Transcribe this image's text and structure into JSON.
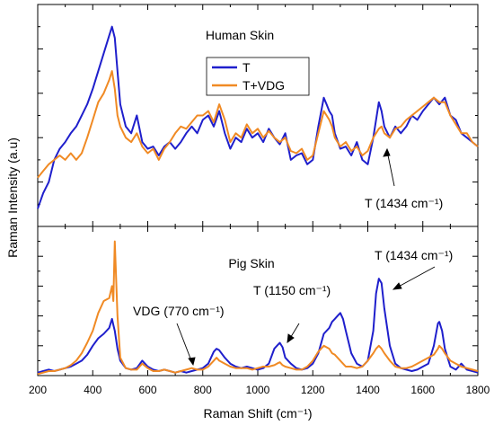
{
  "chart_data": [
    {
      "type": "line",
      "title": "Human Skin",
      "xlabel": "Raman Shift (cm⁻¹)",
      "ylabel": "Raman Intensity (a.u)",
      "xlim": [
        200,
        1800
      ],
      "ylim": [
        0,
        1
      ],
      "y_tick_labels": "none",
      "legend": {
        "position": "top-center",
        "entries": [
          "T",
          "T+VDG"
        ]
      },
      "colors": {
        "T": "#1f1fcc",
        "T+VDG": "#f08a24"
      },
      "series": [
        {
          "name": "T",
          "x": [
            200,
            220,
            240,
            260,
            280,
            300,
            320,
            340,
            360,
            380,
            400,
            420,
            440,
            460,
            470,
            480,
            490,
            500,
            520,
            540,
            560,
            580,
            600,
            620,
            640,
            660,
            680,
            700,
            720,
            740,
            760,
            780,
            800,
            820,
            840,
            860,
            880,
            900,
            920,
            940,
            960,
            980,
            1000,
            1020,
            1040,
            1060,
            1080,
            1100,
            1120,
            1140,
            1160,
            1180,
            1200,
            1220,
            1240,
            1250,
            1260,
            1270,
            1280,
            1300,
            1320,
            1340,
            1360,
            1380,
            1400,
            1420,
            1440,
            1450,
            1460,
            1480,
            1500,
            1520,
            1540,
            1560,
            1580,
            1600,
            1620,
            1640,
            1660,
            1680,
            1700,
            1720,
            1740,
            1760,
            1780,
            1800
          ],
          "y": [
            0.08,
            0.15,
            0.2,
            0.3,
            0.35,
            0.38,
            0.42,
            0.45,
            0.5,
            0.55,
            0.62,
            0.7,
            0.78,
            0.86,
            0.9,
            0.85,
            0.7,
            0.55,
            0.45,
            0.42,
            0.5,
            0.38,
            0.35,
            0.36,
            0.32,
            0.36,
            0.38,
            0.35,
            0.38,
            0.42,
            0.45,
            0.42,
            0.48,
            0.5,
            0.45,
            0.52,
            0.42,
            0.35,
            0.4,
            0.38,
            0.44,
            0.4,
            0.42,
            0.38,
            0.44,
            0.4,
            0.37,
            0.42,
            0.3,
            0.32,
            0.33,
            0.28,
            0.3,
            0.45,
            0.58,
            0.55,
            0.52,
            0.5,
            0.42,
            0.35,
            0.36,
            0.32,
            0.38,
            0.3,
            0.28,
            0.4,
            0.56,
            0.52,
            0.45,
            0.4,
            0.45,
            0.42,
            0.45,
            0.5,
            0.48,
            0.52,
            0.55,
            0.58,
            0.55,
            0.58,
            0.5,
            0.48,
            0.42,
            0.4,
            0.38,
            0.36
          ]
        },
        {
          "name": "T+VDG",
          "x": [
            200,
            220,
            240,
            260,
            280,
            300,
            320,
            340,
            360,
            380,
            400,
            420,
            440,
            460,
            470,
            480,
            490,
            500,
            520,
            540,
            560,
            580,
            600,
            620,
            640,
            660,
            680,
            700,
            720,
            740,
            760,
            780,
            800,
            820,
            840,
            860,
            880,
            900,
            920,
            940,
            960,
            980,
            1000,
            1020,
            1040,
            1060,
            1080,
            1100,
            1120,
            1140,
            1160,
            1180,
            1200,
            1220,
            1240,
            1250,
            1260,
            1270,
            1280,
            1300,
            1320,
            1340,
            1360,
            1380,
            1400,
            1420,
            1440,
            1450,
            1460,
            1480,
            1500,
            1520,
            1540,
            1560,
            1580,
            1600,
            1620,
            1640,
            1660,
            1680,
            1700,
            1720,
            1740,
            1760,
            1780,
            1800
          ],
          "y": [
            0.22,
            0.25,
            0.28,
            0.3,
            0.32,
            0.3,
            0.33,
            0.3,
            0.33,
            0.4,
            0.48,
            0.56,
            0.6,
            0.66,
            0.7,
            0.62,
            0.5,
            0.45,
            0.4,
            0.38,
            0.42,
            0.36,
            0.33,
            0.35,
            0.3,
            0.35,
            0.38,
            0.42,
            0.45,
            0.44,
            0.47,
            0.5,
            0.5,
            0.52,
            0.47,
            0.55,
            0.48,
            0.38,
            0.42,
            0.4,
            0.46,
            0.42,
            0.44,
            0.4,
            0.43,
            0.4,
            0.38,
            0.4,
            0.34,
            0.33,
            0.35,
            0.3,
            0.32,
            0.42,
            0.52,
            0.5,
            0.48,
            0.45,
            0.4,
            0.36,
            0.38,
            0.34,
            0.36,
            0.32,
            0.34,
            0.4,
            0.44,
            0.45,
            0.42,
            0.4,
            0.44,
            0.45,
            0.48,
            0.5,
            0.52,
            0.54,
            0.56,
            0.58,
            0.56,
            0.56,
            0.5,
            0.46,
            0.42,
            0.42,
            0.38,
            0.36
          ]
        }
      ]
    },
    {
      "type": "line",
      "title": "Pig Skin",
      "xlabel": "Raman Shift (cm⁻¹)",
      "ylabel": "Raman Intensity (a.u)",
      "xlim": [
        200,
        1800
      ],
      "ylim": [
        0,
        1
      ],
      "y_tick_labels": "none",
      "x_ticks": [
        200,
        400,
        600,
        800,
        1000,
        1200,
        1400,
        1600,
        1800
      ],
      "annotations": [
        {
          "text": "VDG (770 cm⁻¹)",
          "x": 770
        },
        {
          "text": "T (1150 cm⁻¹)",
          "x": 1150
        },
        {
          "text": "T (1434 cm⁻¹)",
          "x": 1434
        }
      ],
      "series": [
        {
          "name": "T",
          "x": [
            200,
            220,
            240,
            260,
            280,
            300,
            320,
            340,
            360,
            380,
            400,
            420,
            440,
            460,
            470,
            475,
            480,
            490,
            500,
            520,
            540,
            560,
            580,
            600,
            620,
            640,
            660,
            680,
            700,
            720,
            740,
            760,
            780,
            800,
            820,
            840,
            850,
            860,
            880,
            900,
            920,
            940,
            960,
            980,
            1000,
            1020,
            1040,
            1060,
            1070,
            1080,
            1090,
            1100,
            1120,
            1140,
            1160,
            1180,
            1200,
            1220,
            1240,
            1260,
            1270,
            1280,
            1290,
            1300,
            1310,
            1320,
            1340,
            1360,
            1380,
            1400,
            1420,
            1430,
            1440,
            1450,
            1460,
            1480,
            1500,
            1520,
            1540,
            1560,
            1580,
            1600,
            1620,
            1640,
            1655,
            1660,
            1670,
            1680,
            1700,
            1720,
            1740,
            1760,
            1780,
            1800
          ],
          "y": [
            0.02,
            0.03,
            0.04,
            0.03,
            0.04,
            0.05,
            0.06,
            0.08,
            0.1,
            0.14,
            0.2,
            0.25,
            0.28,
            0.32,
            0.38,
            0.34,
            0.3,
            0.18,
            0.1,
            0.05,
            0.04,
            0.05,
            0.1,
            0.06,
            0.04,
            0.03,
            0.04,
            0.03,
            0.02,
            0.03,
            0.02,
            0.03,
            0.04,
            0.05,
            0.08,
            0.16,
            0.18,
            0.17,
            0.12,
            0.08,
            0.06,
            0.05,
            0.06,
            0.05,
            0.04,
            0.05,
            0.08,
            0.18,
            0.2,
            0.22,
            0.19,
            0.12,
            0.08,
            0.05,
            0.04,
            0.05,
            0.08,
            0.15,
            0.28,
            0.32,
            0.36,
            0.38,
            0.4,
            0.42,
            0.38,
            0.3,
            0.15,
            0.08,
            0.06,
            0.1,
            0.3,
            0.55,
            0.65,
            0.62,
            0.45,
            0.2,
            0.08,
            0.05,
            0.04,
            0.03,
            0.04,
            0.06,
            0.08,
            0.2,
            0.35,
            0.36,
            0.3,
            0.18,
            0.06,
            0.04,
            0.08,
            0.04,
            0.03,
            0.02
          ]
        },
        {
          "name": "T+VDG",
          "x": [
            200,
            220,
            240,
            260,
            280,
            300,
            320,
            340,
            360,
            380,
            400,
            420,
            440,
            460,
            470,
            475,
            480,
            490,
            500,
            520,
            540,
            560,
            580,
            600,
            620,
            640,
            660,
            680,
            700,
            720,
            740,
            760,
            780,
            800,
            820,
            840,
            850,
            860,
            880,
            900,
            920,
            940,
            960,
            980,
            1000,
            1020,
            1040,
            1060,
            1070,
            1080,
            1090,
            1100,
            1120,
            1140,
            1160,
            1180,
            1200,
            1220,
            1240,
            1260,
            1270,
            1280,
            1290,
            1300,
            1310,
            1320,
            1340,
            1360,
            1380,
            1400,
            1420,
            1430,
            1440,
            1450,
            1460,
            1480,
            1500,
            1520,
            1540,
            1560,
            1580,
            1600,
            1620,
            1640,
            1655,
            1660,
            1670,
            1680,
            1700,
            1720,
            1740,
            1760,
            1780,
            1800
          ],
          "y": [
            0.01,
            0.02,
            0.03,
            0.03,
            0.04,
            0.05,
            0.07,
            0.1,
            0.15,
            0.22,
            0.3,
            0.42,
            0.5,
            0.52,
            0.6,
            0.5,
            0.9,
            0.4,
            0.12,
            0.05,
            0.04,
            0.04,
            0.08,
            0.05,
            0.03,
            0.03,
            0.04,
            0.03,
            0.02,
            0.03,
            0.04,
            0.05,
            0.04,
            0.04,
            0.06,
            0.1,
            0.12,
            0.1,
            0.08,
            0.06,
            0.05,
            0.05,
            0.05,
            0.04,
            0.05,
            0.06,
            0.06,
            0.07,
            0.08,
            0.09,
            0.07,
            0.06,
            0.05,
            0.04,
            0.04,
            0.06,
            0.1,
            0.16,
            0.2,
            0.18,
            0.15,
            0.14,
            0.12,
            0.1,
            0.08,
            0.06,
            0.06,
            0.05,
            0.06,
            0.1,
            0.15,
            0.18,
            0.2,
            0.18,
            0.15,
            0.1,
            0.06,
            0.05,
            0.05,
            0.06,
            0.08,
            0.1,
            0.12,
            0.14,
            0.18,
            0.2,
            0.18,
            0.15,
            0.1,
            0.08,
            0.06,
            0.05,
            0.04,
            0.03
          ]
        }
      ]
    }
  ]
}
